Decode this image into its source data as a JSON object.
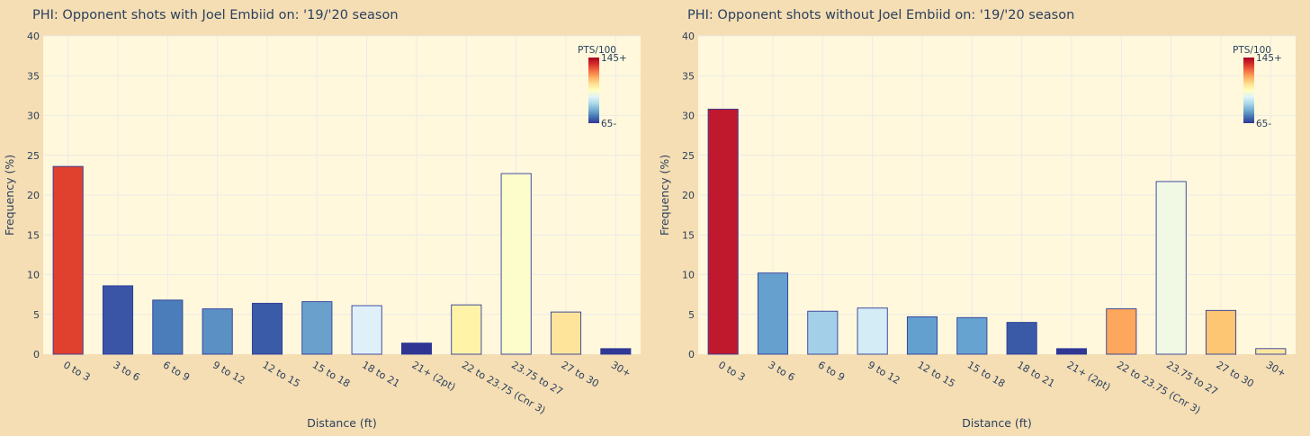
{
  "colorscale": [
    "#313695",
    "#4575b4",
    "#74add1",
    "#abd9e9",
    "#e0f3f8",
    "#ffffbf",
    "#fee090",
    "#fdae61",
    "#f46d43",
    "#d73027",
    "#a50026"
  ],
  "chart_data": [
    {
      "type": "bar",
      "title": "PHI: Opponent shots with Joel Embiid on: '19/'20 season",
      "xlabel": "Distance (ft)",
      "ylabel": "Frequency (%)",
      "ylim": [
        0,
        40
      ],
      "yticks": [
        0,
        5,
        10,
        15,
        20,
        25,
        30,
        35,
        40
      ],
      "grid": true,
      "legend_position": "top-right",
      "colorbar": {
        "title": "PTS/100",
        "max_label": "145+",
        "min_label": "65-",
        "range": [
          65,
          145
        ]
      },
      "categories": [
        "0 to 3",
        "3 to 6",
        "6 to 9",
        "9 to 12",
        "12 to 15",
        "15 to 18",
        "18 to 21",
        "21+ (2pt)",
        "22 to 23.75 (Cnr 3)",
        "23.75 to 27",
        "27 to 30",
        "30+"
      ],
      "values": [
        23.6,
        8.6,
        6.8,
        5.7,
        6.4,
        6.6,
        6.1,
        1.4,
        6.2,
        22.7,
        5.3,
        0.7
      ],
      "colors": [
        "#e0402e",
        "#3a55a6",
        "#4a7db9",
        "#5b90c4",
        "#3a5ba8",
        "#6aa0cc",
        "#e0f0f8",
        "#2e3592",
        "#fff3a8",
        "#fcfdca",
        "#fee49a",
        "#2f3894"
      ]
    },
    {
      "type": "bar",
      "title": "PHI: Opponent shots without Joel Embiid on: '19/'20 season",
      "xlabel": "Distance (ft)",
      "ylabel": "Frequency (%)",
      "ylim": [
        0,
        40
      ],
      "yticks": [
        0,
        5,
        10,
        15,
        20,
        25,
        30,
        35,
        40
      ],
      "grid": true,
      "legend_position": "top-right",
      "colorbar": {
        "title": "PTS/100",
        "max_label": "145+",
        "min_label": "65-",
        "range": [
          65,
          145
        ]
      },
      "categories": [
        "0 to 3",
        "3 to 6",
        "6 to 9",
        "9 to 12",
        "12 to 15",
        "15 to 18",
        "18 to 21",
        "21+ (2pt)",
        "22 to 23.75 (Cnr 3)",
        "23.75 to 27",
        "27 to 30",
        "30+"
      ],
      "values": [
        30.8,
        10.2,
        5.4,
        5.8,
        4.7,
        4.6,
        4.0,
        0.7,
        5.7,
        21.7,
        5.5,
        0.7
      ],
      "colors": [
        "#c0192e",
        "#65a0cf",
        "#a3d0e8",
        "#d3ecf6",
        "#64a0cf",
        "#67a3d0",
        "#3a5aa8",
        "#2f3694",
        "#fca75b",
        "#f1f8e4",
        "#fdc673",
        "#fbe6a0"
      ]
    }
  ]
}
